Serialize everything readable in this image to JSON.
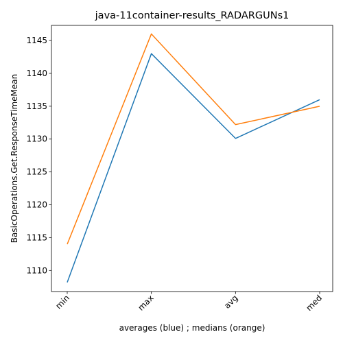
{
  "chart_data": {
    "type": "line",
    "title": "java-11container-results_RADARGUNs1",
    "xlabel": "averages (blue) ; medians (orange)",
    "ylabel": "BasicOperations.Get.ResponseTimeMean",
    "categories": [
      "min",
      "max",
      "avg",
      "med"
    ],
    "yticks": [
      1110,
      1115,
      1120,
      1125,
      1130,
      1135,
      1140,
      1145
    ],
    "ylim": [
      1106.8,
      1147.3
    ],
    "grid": false,
    "series": [
      {
        "color": "#1f77b4",
        "values": [
          1108.2,
          1143.0,
          1130.1,
          1136.0
        ]
      },
      {
        "color": "#ff7f0e",
        "values": [
          1114.0,
          1146.0,
          1132.2,
          1135.0
        ]
      }
    ]
  }
}
